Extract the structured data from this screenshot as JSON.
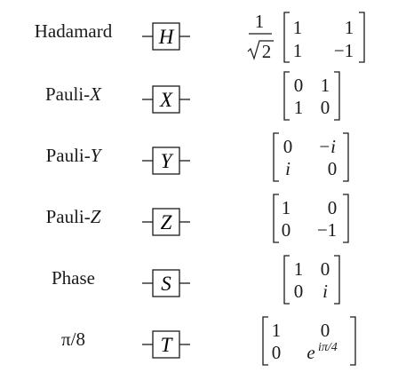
{
  "gates": [
    {
      "name_prefix": "Hadamard",
      "name_var": "",
      "symbol": "H",
      "scalar": {
        "numerator": "1",
        "denominator": "2"
      },
      "matrix": [
        [
          "1",
          "1"
        ],
        [
          "1",
          "−1"
        ]
      ]
    },
    {
      "name_prefix": "Pauli-",
      "name_var": "X",
      "symbol": "X",
      "matrix": [
        [
          "0",
          "1"
        ],
        [
          "1",
          "0"
        ]
      ]
    },
    {
      "name_prefix": "Pauli-",
      "name_var": "Y",
      "symbol": "Y",
      "matrix": [
        [
          "0",
          "−i"
        ],
        [
          "i",
          "0"
        ]
      ]
    },
    {
      "name_prefix": "Pauli-",
      "name_var": "Z",
      "symbol": "Z",
      "matrix": [
        [
          "1",
          "0"
        ],
        [
          "0",
          "−1"
        ]
      ]
    },
    {
      "name_prefix": "Phase",
      "name_var": "",
      "symbol": "S",
      "matrix": [
        [
          "1",
          "0"
        ],
        [
          "0",
          "i"
        ]
      ]
    },
    {
      "name_prefix": "π/8",
      "name_var": "",
      "symbol": "T",
      "matrix": [
        [
          "1",
          "0"
        ],
        [
          "0",
          "e"
        ]
      ],
      "exponent": "iπ/4"
    }
  ]
}
